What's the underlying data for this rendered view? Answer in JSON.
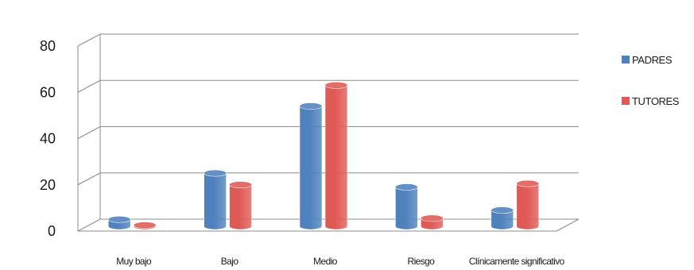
{
  "chart_data": {
    "type": "bar",
    "title": "",
    "xlabel": "",
    "ylabel": "",
    "categories": [
      "Muy bajo",
      "Bajo",
      "Medio",
      "Riesgo",
      "Clínicamente significativo"
    ],
    "series": [
      {
        "name": "PADRES",
        "color": "#4f81bd",
        "values": [
          3,
          23,
          52,
          17,
          7
        ]
      },
      {
        "name": "TUTORES",
        "color": "#e05a55",
        "values": [
          0.5,
          18,
          61,
          3.5,
          18.5
        ]
      }
    ],
    "ylim": [
      0,
      80
    ],
    "yticks": [
      0,
      20,
      40,
      60,
      80
    ],
    "grid": true,
    "legend_position": "right",
    "style": "3d-cylinder"
  }
}
